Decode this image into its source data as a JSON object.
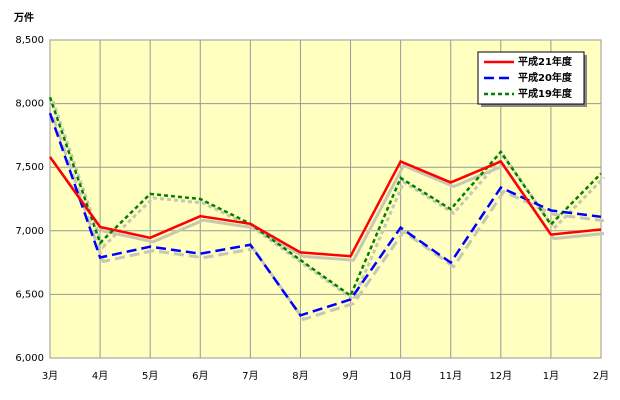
{
  "chart_data": {
    "type": "line",
    "y_label": "万件",
    "categories": [
      "3月",
      "4月",
      "5月",
      "6月",
      "7月",
      "8月",
      "9月",
      "10月",
      "11月",
      "12月",
      "1月",
      "2月"
    ],
    "series": [
      {
        "name": "平成21年度",
        "color": "#ff0000",
        "dash": "solid",
        "values": [
          7580,
          7030,
          6945,
          7115,
          7055,
          6830,
          6800,
          7545,
          7380,
          7545,
          6970,
          7010
        ]
      },
      {
        "name": "平成20年度",
        "color": "#0000ff",
        "dash": "dashed",
        "values": [
          7925,
          6790,
          6875,
          6820,
          6890,
          6335,
          6460,
          7025,
          6750,
          7340,
          7160,
          7110
        ]
      },
      {
        "name": "平成19年度",
        "color": "#008000",
        "dash": "dotted",
        "values": [
          8050,
          6905,
          7290,
          7250,
          7055,
          6770,
          6490,
          7415,
          7170,
          7620,
          7050,
          7450
        ]
      }
    ],
    "ylim": [
      6000,
      8500
    ],
    "yticks": [
      {
        "value": 6000,
        "label": "6,000"
      },
      {
        "value": 6500,
        "label": "6,500"
      },
      {
        "value": 7000,
        "label": "7,000"
      },
      {
        "value": 7500,
        "label": "7,500"
      },
      {
        "value": 8000,
        "label": "8,000"
      },
      {
        "value": 8500,
        "label": "8,500"
      }
    ],
    "grid": true,
    "legend": "top-right",
    "background": "#ffffc0"
  }
}
